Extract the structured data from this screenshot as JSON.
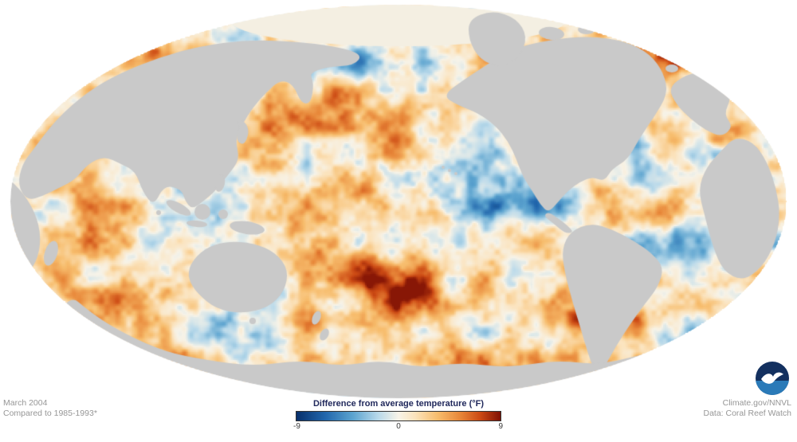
{
  "footer": {
    "date": "March 2004",
    "baseline": "Compared to 1985-1993*",
    "credit_source": "Climate.gov/NNVL",
    "credit_data": "Data: Coral Reef Watch"
  },
  "legend": {
    "title": "Difference from average temperature (°F)",
    "min_label": "-9",
    "mid_label": "0",
    "max_label": "9"
  },
  "logo": {
    "name": "noaa-logo",
    "alt": "NOAA"
  },
  "colors": {
    "background": "#ffffff",
    "land": "#c9c9c9",
    "ocean_zero": "#f7f3e8",
    "arctic_ice": "#f4efe2",
    "scale": [
      "#08306b",
      "#2166ac",
      "#5ba3cf",
      "#b8d9ea",
      "#f7f3e8",
      "#fbe3bd",
      "#f7bd6d",
      "#e8883a",
      "#cc4a14",
      "#7f1004"
    ]
  },
  "chart_data": {
    "type": "heatmap",
    "title": "Difference from average temperature (°F)",
    "period": "March 2004",
    "baseline": "Compared to 1985-1993*",
    "colorbar": {
      "min": -9,
      "mid": 0,
      "max": 9,
      "units": "°F",
      "tick_labels": [
        "-9",
        "0",
        "9"
      ],
      "colors": [
        "#08306b",
        "#2166ac",
        "#5ba3cf",
        "#b8d9ea",
        "#f7f3e8",
        "#fbe3bd",
        "#f7bd6d",
        "#e8883a",
        "#cc4a14",
        "#7f1004"
      ]
    },
    "source": "Climate.gov/NNVL",
    "data_provider": "Data: Coral Reef Watch",
    "legend_position": "bottom-center"
  }
}
